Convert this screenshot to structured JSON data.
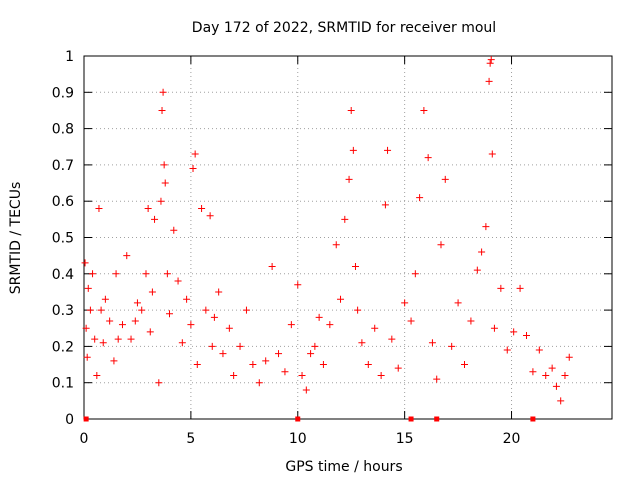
{
  "chart_data": {
    "type": "scatter",
    "title": "Day 172 of 2022, SRMTID for receiver moul",
    "xlabel": "GPS time / hours",
    "ylabel": "SRMTID / TECUs",
    "xlim": [
      0,
      24.7
    ],
    "ylim": [
      0,
      1
    ],
    "xticks": [
      0,
      5,
      10,
      15,
      20
    ],
    "yticks": [
      0,
      0.1,
      0.2,
      0.3,
      0.4,
      0.5,
      0.6,
      0.7,
      0.8,
      0.9,
      1
    ],
    "xtick_labels": [
      "0",
      "5",
      "10",
      "15",
      "20"
    ],
    "ytick_labels": [
      "0",
      "0.1",
      "0.2",
      "0.3",
      "0.4",
      "0.5",
      "0.6",
      "0.7",
      "0.8",
      "0.9",
      "1"
    ],
    "grid": true,
    "marker": "plus",
    "series": [
      {
        "name": "SRMTID",
        "color": "#ff0000",
        "x": [
          0.05,
          0.1,
          0.15,
          0.2,
          0.3,
          0.4,
          0.5,
          0.6,
          0.7,
          0.8,
          0.9,
          1.0,
          1.2,
          1.4,
          1.5,
          1.6,
          1.8,
          2.0,
          2.2,
          2.4,
          2.5,
          2.7,
          2.9,
          3.0,
          3.1,
          3.2,
          3.3,
          3.5,
          3.6,
          3.65,
          3.7,
          3.75,
          3.8,
          3.9,
          4.0,
          4.2,
          4.4,
          4.6,
          4.8,
          5.0,
          5.1,
          5.2,
          5.3,
          5.5,
          5.7,
          5.9,
          6.0,
          6.1,
          6.3,
          6.5,
          6.8,
          7.0,
          7.3,
          7.6,
          7.9,
          8.2,
          8.5,
          8.8,
          9.1,
          9.4,
          9.7,
          10.0,
          10.2,
          10.4,
          10.6,
          10.8,
          11.0,
          11.2,
          11.5,
          11.8,
          12.0,
          12.2,
          12.4,
          12.5,
          12.6,
          12.7,
          12.8,
          13.0,
          13.3,
          13.6,
          13.9,
          14.1,
          14.2,
          14.4,
          14.7,
          15.0,
          15.3,
          15.5,
          15.7,
          15.9,
          16.1,
          16.3,
          16.5,
          16.7,
          16.9,
          17.2,
          17.5,
          17.8,
          18.1,
          18.4,
          18.6,
          18.8,
          18.95,
          19.0,
          19.05,
          19.1,
          19.2,
          19.5,
          19.8,
          20.1,
          20.4,
          20.7,
          21.0,
          21.3,
          21.6,
          21.9,
          22.1,
          22.3,
          22.5,
          22.7
        ],
        "y": [
          0.43,
          0.25,
          0.17,
          0.36,
          0.3,
          0.4,
          0.22,
          0.12,
          0.58,
          0.3,
          0.21,
          0.33,
          0.27,
          0.16,
          0.4,
          0.22,
          0.26,
          0.45,
          0.22,
          0.27,
          0.32,
          0.3,
          0.4,
          0.58,
          0.24,
          0.35,
          0.55,
          0.1,
          0.6,
          0.85,
          0.9,
          0.7,
          0.65,
          0.4,
          0.29,
          0.52,
          0.38,
          0.21,
          0.33,
          0.26,
          0.69,
          0.73,
          0.15,
          0.58,
          0.3,
          0.56,
          0.2,
          0.28,
          0.35,
          0.18,
          0.25,
          0.12,
          0.2,
          0.3,
          0.15,
          0.1,
          0.16,
          0.42,
          0.18,
          0.13,
          0.26,
          0.37,
          0.12,
          0.08,
          0.18,
          0.2,
          0.28,
          0.15,
          0.26,
          0.48,
          0.33,
          0.55,
          0.66,
          0.85,
          0.74,
          0.42,
          0.3,
          0.21,
          0.15,
          0.25,
          0.12,
          0.59,
          0.74,
          0.22,
          0.14,
          0.32,
          0.27,
          0.4,
          0.61,
          0.85,
          0.72,
          0.21,
          0.11,
          0.48,
          0.66,
          0.2,
          0.32,
          0.15,
          0.27,
          0.41,
          0.46,
          0.53,
          0.93,
          0.98,
          0.99,
          0.73,
          0.25,
          0.36,
          0.19,
          0.24,
          0.36,
          0.23,
          0.13,
          0.19,
          0.12,
          0.14,
          0.09,
          0.05,
          0.12,
          0.17
        ]
      }
    ],
    "noise_markers": {
      "color": "#ff0000",
      "x": [
        0.1,
        10.0,
        15.3,
        16.5,
        21.0
      ],
      "y": [
        0,
        0,
        0,
        0,
        0
      ]
    }
  }
}
